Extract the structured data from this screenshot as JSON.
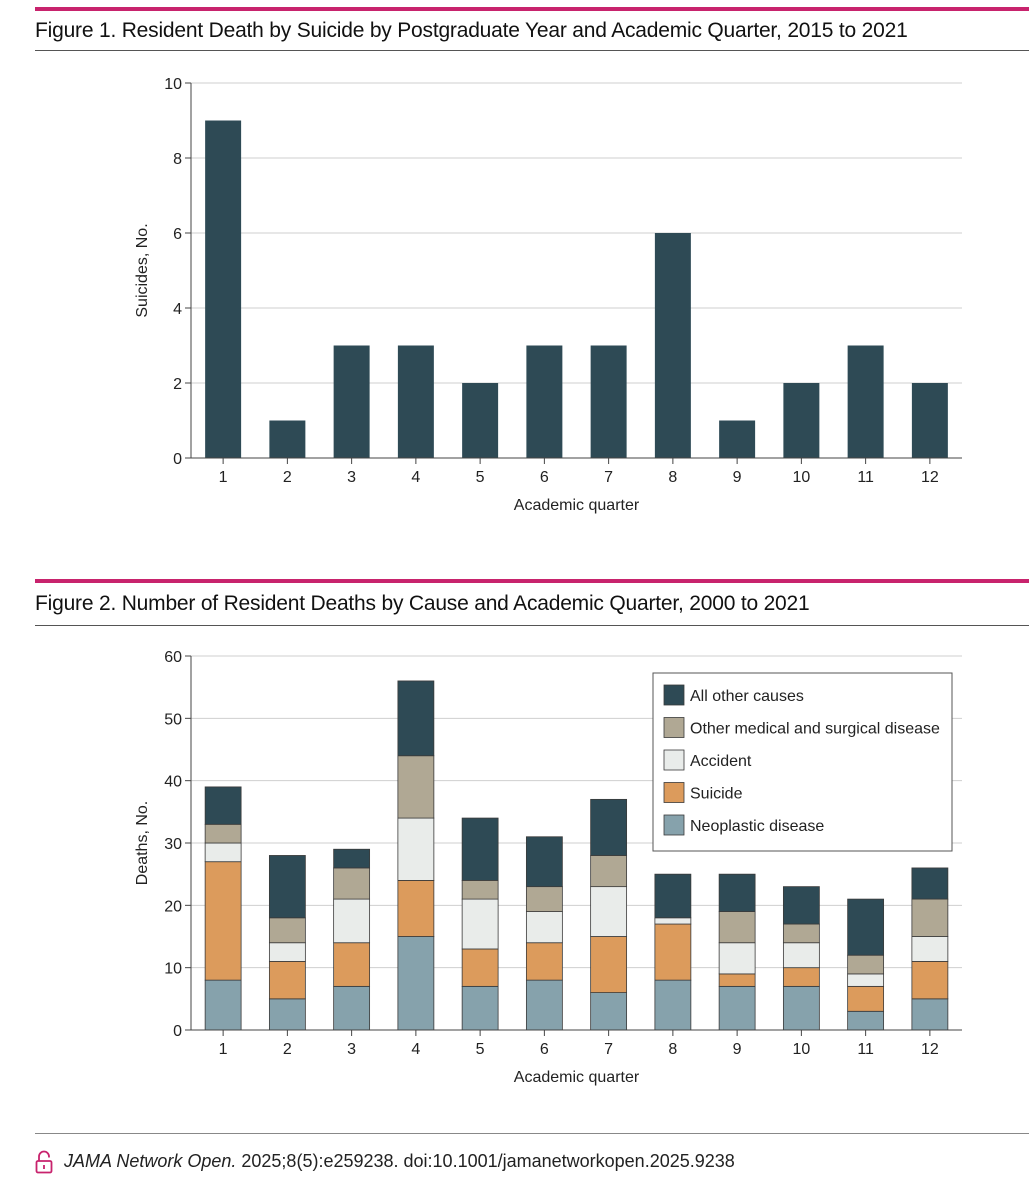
{
  "chart_data": [
    {
      "type": "bar",
      "title": "Figure 1. Resident Death by Suicide by Postgraduate Year and Academic Quarter, 2015 to 2021",
      "xlabel": "Academic quarter",
      "ylabel": "Suicides, No.",
      "categories": [
        "1",
        "2",
        "3",
        "4",
        "5",
        "6",
        "7",
        "8",
        "9",
        "10",
        "11",
        "12"
      ],
      "values": [
        9,
        1,
        3,
        3,
        2,
        3,
        3,
        6,
        1,
        2,
        3,
        2
      ],
      "ylim": [
        0,
        10
      ],
      "yticks": [
        "0",
        "2",
        "4",
        "6",
        "8",
        "10"
      ],
      "grid": true,
      "color": "#2e4a55"
    },
    {
      "type": "bar",
      "stacked": true,
      "title": "Figure 2. Number of Resident Deaths by Cause and Academic Quarter, 2000 to 2021",
      "xlabel": "Academic quarter",
      "ylabel": "Deaths, No.",
      "categories": [
        "1",
        "2",
        "3",
        "4",
        "5",
        "6",
        "7",
        "8",
        "9",
        "10",
        "11",
        "12"
      ],
      "ylim": [
        0,
        60
      ],
      "yticks": [
        "0",
        "10",
        "20",
        "30",
        "40",
        "50",
        "60"
      ],
      "grid": true,
      "legend_position": "top-right",
      "series": [
        {
          "name": "Neoplastic disease",
          "color": "#86a2ac",
          "values": [
            8,
            5,
            7,
            15,
            7,
            8,
            6,
            8,
            7,
            7,
            3,
            5
          ]
        },
        {
          "name": "Suicide",
          "color": "#dc9b5c",
          "values": [
            19,
            6,
            7,
            9,
            6,
            6,
            9,
            9,
            2,
            3,
            4,
            6
          ]
        },
        {
          "name": "Accident",
          "color": "#e9ecea",
          "values": [
            3,
            3,
            7,
            10,
            8,
            5,
            8,
            1,
            5,
            4,
            2,
            4
          ]
        },
        {
          "name": "Other medical and surgical disease",
          "color": "#b0a894",
          "values": [
            3,
            4,
            5,
            10,
            3,
            4,
            5,
            0,
            5,
            3,
            3,
            6
          ]
        },
        {
          "name": "All other causes",
          "color": "#2e4a55",
          "values": [
            6,
            10,
            3,
            12,
            10,
            8,
            9,
            7,
            6,
            6,
            9,
            5
          ]
        }
      ]
    }
  ],
  "footer": {
    "lock_icon": "open-lock-icon",
    "journal": "JAMA Network Open.",
    "citation": " 2025;8(5):e259238. doi:10.1001/jamanetworkopen.2025.9238"
  }
}
